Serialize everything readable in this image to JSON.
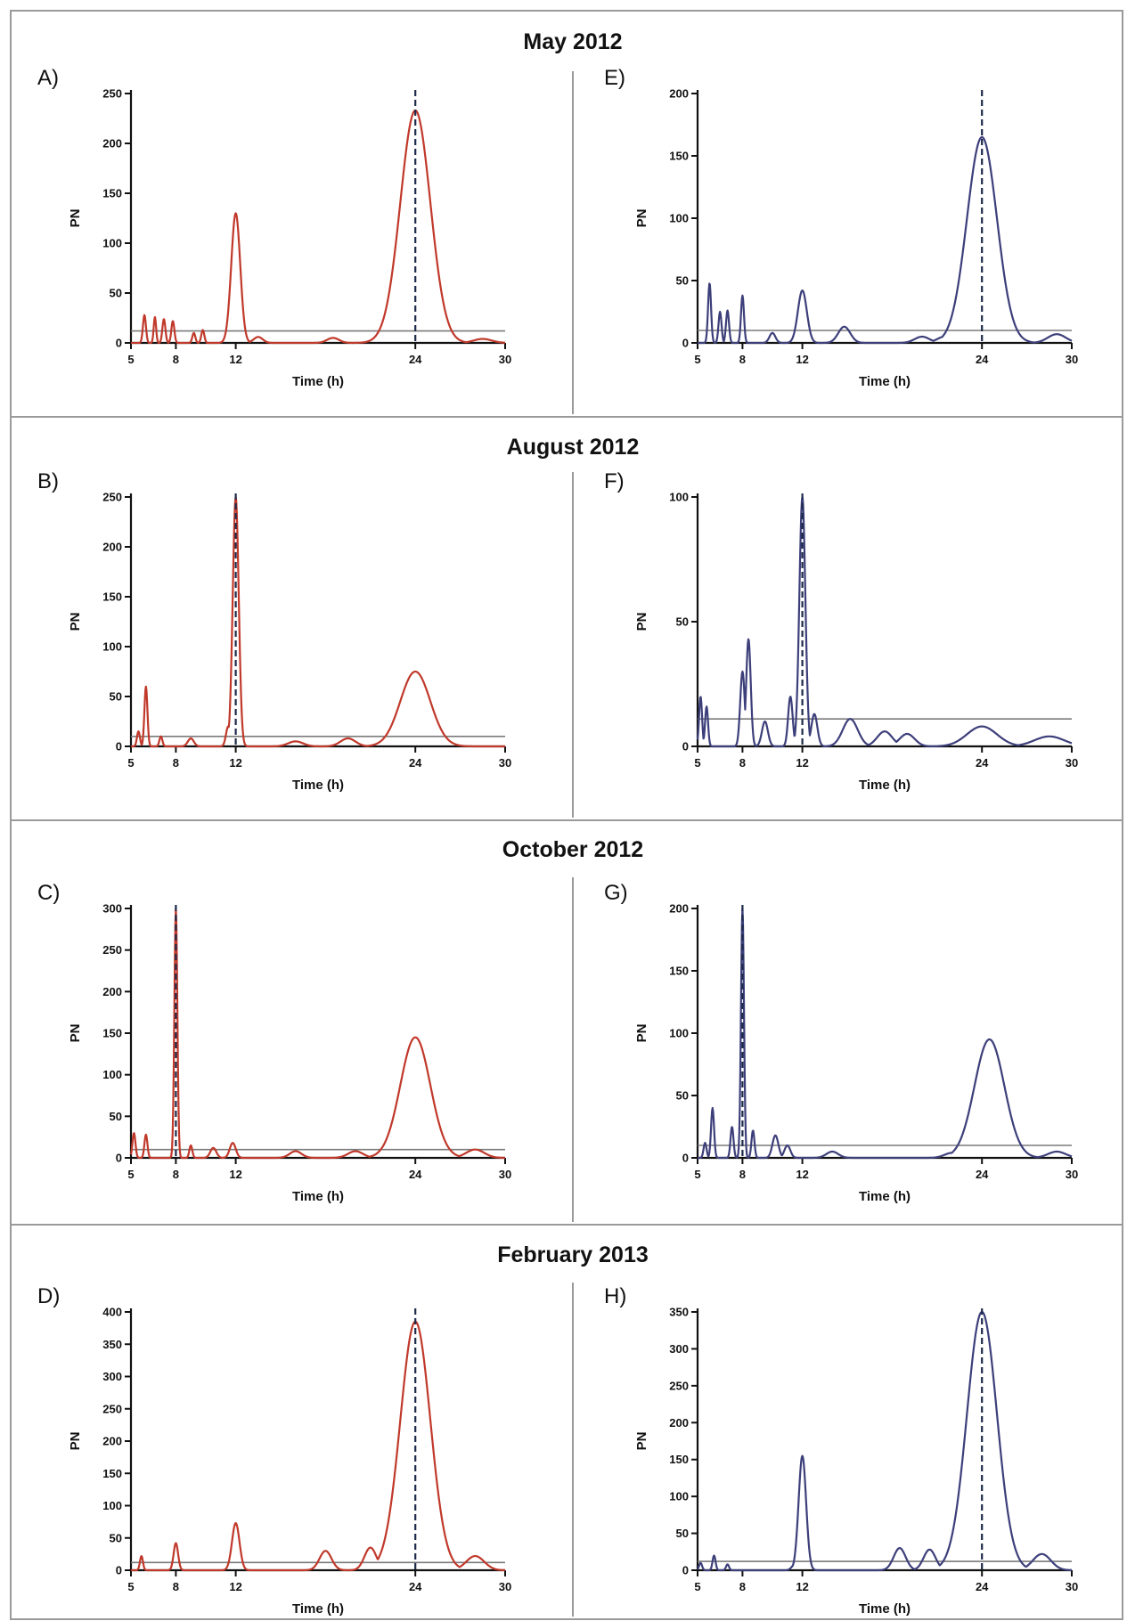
{
  "figure": {
    "row_titles": [
      "May 2012",
      "August 2012",
      "October 2012",
      "February 2013"
    ],
    "colors": {
      "left": "#c0392b",
      "right": "#3d3f7a",
      "threshold": "#7a7a7a",
      "peak_line": "#1d2a4a"
    }
  },
  "chart_data": [
    {
      "type": "line",
      "panel": "A)",
      "row": 0,
      "col": 0,
      "xlabel": "Time (h)",
      "ylabel": "PN",
      "xticks": [
        5,
        8,
        12,
        24,
        30
      ],
      "yticks": [
        0,
        50,
        100,
        150,
        200,
        250
      ],
      "xlim": [
        5,
        30
      ],
      "ylim": [
        0,
        250
      ],
      "threshold": 12,
      "peak_period": 24,
      "peaks": [
        [
          5.9,
          28,
          0.1
        ],
        [
          6.6,
          26,
          0.08
        ],
        [
          7.2,
          24,
          0.1
        ],
        [
          7.8,
          22,
          0.1
        ],
        [
          9.2,
          10,
          0.1
        ],
        [
          9.8,
          13,
          0.1
        ],
        [
          12.0,
          130,
          0.3
        ],
        [
          13.5,
          6,
          0.3
        ],
        [
          18.5,
          5,
          0.4
        ],
        [
          24.0,
          233,
          1.0
        ],
        [
          28.5,
          4,
          0.6
        ]
      ]
    },
    {
      "type": "line",
      "panel": "E)",
      "row": 0,
      "col": 1,
      "xlabel": "Time (h)",
      "ylabel": "PN",
      "xticks": [
        5,
        8,
        12,
        24,
        30
      ],
      "yticks": [
        0,
        50,
        100,
        150,
        200
      ],
      "xlim": [
        5,
        30
      ],
      "ylim": [
        0,
        200
      ],
      "threshold": 10,
      "peak_period": 24,
      "peaks": [
        [
          5.8,
          48,
          0.1
        ],
        [
          6.5,
          25,
          0.1
        ],
        [
          7.0,
          26,
          0.1
        ],
        [
          8.0,
          38,
          0.1
        ],
        [
          10.0,
          8,
          0.2
        ],
        [
          12.0,
          42,
          0.3
        ],
        [
          14.8,
          13,
          0.4
        ],
        [
          20.0,
          5,
          0.5
        ],
        [
          21.5,
          5,
          0.5
        ],
        [
          24.0,
          165,
          1.0
        ],
        [
          29.0,
          7,
          0.6
        ]
      ]
    },
    {
      "type": "line",
      "panel": "B)",
      "row": 1,
      "col": 0,
      "xlabel": "Time (h)",
      "ylabel": "PN",
      "xticks": [
        5,
        8,
        12,
        24,
        30
      ],
      "yticks": [
        0,
        50,
        100,
        150,
        200,
        250
      ],
      "xlim": [
        5,
        30
      ],
      "ylim": [
        0,
        250
      ],
      "threshold": 10,
      "peak_period": 12,
      "peaks": [
        [
          6.0,
          60,
          0.1
        ],
        [
          5.5,
          15,
          0.1
        ],
        [
          7.0,
          10,
          0.1
        ],
        [
          9.0,
          8,
          0.2
        ],
        [
          11.5,
          20,
          0.15
        ],
        [
          12.0,
          250,
          0.2
        ],
        [
          16.0,
          5,
          0.5
        ],
        [
          19.5,
          8,
          0.5
        ],
        [
          24.0,
          75,
          1.0
        ]
      ]
    },
    {
      "type": "line",
      "panel": "F)",
      "row": 1,
      "col": 1,
      "xlabel": "Time (h)",
      "ylabel": "PN",
      "xticks": [
        5,
        8,
        12,
        24,
        30
      ],
      "yticks": [
        0,
        50,
        100
      ],
      "xlim": [
        5,
        30
      ],
      "ylim": [
        0,
        100
      ],
      "threshold": 11,
      "peak_period": 12,
      "peaks": [
        [
          5.2,
          20,
          0.1
        ],
        [
          5.6,
          16,
          0.1
        ],
        [
          8.0,
          30,
          0.15
        ],
        [
          8.4,
          43,
          0.15
        ],
        [
          9.5,
          10,
          0.2
        ],
        [
          11.2,
          20,
          0.15
        ],
        [
          12.0,
          100,
          0.2
        ],
        [
          12.8,
          13,
          0.2
        ],
        [
          15.2,
          11,
          0.5
        ],
        [
          17.5,
          6,
          0.5
        ],
        [
          19.0,
          5,
          0.5
        ],
        [
          24.0,
          8,
          1.0
        ],
        [
          28.5,
          4,
          1.0
        ]
      ]
    },
    {
      "type": "line",
      "panel": "C)",
      "row": 2,
      "col": 0,
      "xlabel": "Time (h)",
      "ylabel": "PN",
      "xticks": [
        5,
        8,
        12,
        24,
        30
      ],
      "yticks": [
        0,
        50,
        100,
        150,
        200,
        250,
        300
      ],
      "xlim": [
        5,
        30
      ],
      "ylim": [
        0,
        300
      ],
      "threshold": 10,
      "peak_period": 8,
      "peaks": [
        [
          5.2,
          30,
          0.1
        ],
        [
          6.0,
          28,
          0.1
        ],
        [
          8.0,
          300,
          0.1
        ],
        [
          9.0,
          15,
          0.1
        ],
        [
          10.5,
          12,
          0.2
        ],
        [
          11.8,
          18,
          0.2
        ],
        [
          16.0,
          8,
          0.4
        ],
        [
          20.0,
          8,
          0.5
        ],
        [
          24.0,
          145,
          1.0
        ],
        [
          28.0,
          10,
          0.6
        ]
      ]
    },
    {
      "type": "line",
      "panel": "G)",
      "row": 2,
      "col": 1,
      "xlabel": "Time (h)",
      "ylabel": "PN",
      "xticks": [
        5,
        8,
        12,
        24,
        30
      ],
      "yticks": [
        0,
        50,
        100,
        150,
        200
      ],
      "xlim": [
        5,
        30
      ],
      "ylim": [
        0,
        200
      ],
      "threshold": 10,
      "peak_period": 8,
      "peaks": [
        [
          5.5,
          12,
          0.1
        ],
        [
          6.0,
          40,
          0.1
        ],
        [
          7.3,
          25,
          0.1
        ],
        [
          8.0,
          200,
          0.1
        ],
        [
          8.7,
          22,
          0.1
        ],
        [
          10.2,
          18,
          0.2
        ],
        [
          11.0,
          10,
          0.2
        ],
        [
          14.0,
          5,
          0.4
        ],
        [
          22.0,
          4,
          0.5
        ],
        [
          24.5,
          95,
          1.0
        ],
        [
          29.0,
          5,
          0.6
        ]
      ]
    },
    {
      "type": "line",
      "panel": "D)",
      "row": 3,
      "col": 0,
      "xlabel": "Time (h)",
      "ylabel": "PN",
      "xticks": [
        5,
        8,
        12,
        24,
        30
      ],
      "yticks": [
        0,
        50,
        100,
        150,
        200,
        250,
        300,
        350,
        400
      ],
      "xlim": [
        5,
        30
      ],
      "ylim": [
        0,
        400
      ],
      "threshold": 12,
      "peak_period": 24,
      "peaks": [
        [
          5.7,
          22,
          0.1
        ],
        [
          8.0,
          42,
          0.15
        ],
        [
          12.0,
          73,
          0.25
        ],
        [
          18.0,
          30,
          0.4
        ],
        [
          21.0,
          35,
          0.4
        ],
        [
          24.0,
          385,
          1.0
        ],
        [
          28.0,
          22,
          0.6
        ]
      ]
    },
    {
      "type": "line",
      "panel": "H)",
      "row": 3,
      "col": 1,
      "xlabel": "Time (h)",
      "ylabel": "PN",
      "xticks": [
        5,
        8,
        12,
        24,
        30
      ],
      "yticks": [
        0,
        50,
        100,
        150,
        200,
        250,
        300,
        350
      ],
      "xlim": [
        5,
        30
      ],
      "ylim": [
        0,
        350
      ],
      "threshold": 12,
      "peak_period": 24,
      "peaks": [
        [
          5.2,
          10,
          0.1
        ],
        [
          6.1,
          20,
          0.1
        ],
        [
          7.0,
          8,
          0.1
        ],
        [
          11.5,
          8,
          0.2
        ],
        [
          12.0,
          155,
          0.25
        ],
        [
          18.5,
          30,
          0.4
        ],
        [
          20.5,
          28,
          0.4
        ],
        [
          24.0,
          350,
          1.0
        ],
        [
          28.0,
          22,
          0.6
        ]
      ]
    }
  ]
}
